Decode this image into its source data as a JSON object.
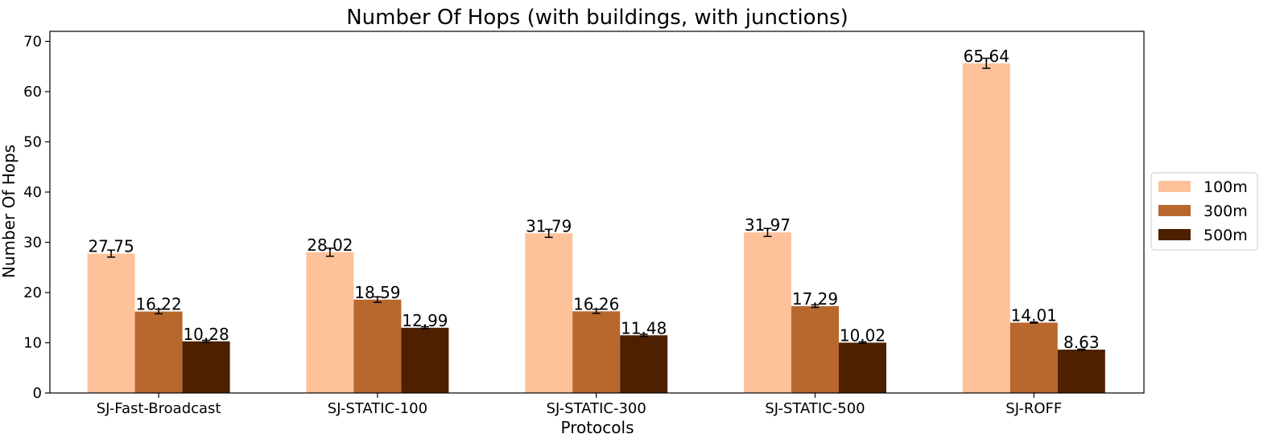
{
  "chart_data": {
    "type": "bar",
    "title": "Number Of Hops (with buildings, with junctions)",
    "xlabel": "Protocols",
    "ylabel": "Number Of Hops",
    "categories": [
      "SJ-Fast-Broadcast",
      "SJ-STATIC-100",
      "SJ-STATIC-300",
      "SJ-STATIC-500",
      "SJ-ROFF"
    ],
    "ylim": [
      0,
      72
    ],
    "yticks": [
      0,
      10,
      20,
      30,
      40,
      50,
      60,
      70
    ],
    "grid": false,
    "legend_position": "center-right, outside plot",
    "series": [
      {
        "name": "100m",
        "color": "#fdc29a",
        "values": [
          27.75,
          28.02,
          31.79,
          31.97,
          65.64
        ],
        "labels": [
          "27.75",
          "28.02",
          "31.79",
          "31.97",
          "65.64"
        ],
        "errors": [
          0.7,
          0.8,
          0.8,
          0.8,
          1.0
        ]
      },
      {
        "name": "300m",
        "color": "#b8672d",
        "values": [
          16.22,
          18.59,
          16.26,
          17.29,
          14.01
        ],
        "labels": [
          "16.22",
          "18.59",
          "16.26",
          "17.29",
          "14.01"
        ],
        "errors": [
          0.45,
          0.55,
          0.4,
          0.25,
          0.1
        ]
      },
      {
        "name": "500m",
        "color": "#4d2000",
        "values": [
          10.28,
          12.99,
          11.48,
          10.02,
          8.63
        ],
        "labels": [
          "10.28",
          "12.99",
          "11.48",
          "10.02",
          "8.63"
        ],
        "errors": [
          0.2,
          0.2,
          0.2,
          0.15,
          0.1
        ]
      }
    ]
  }
}
